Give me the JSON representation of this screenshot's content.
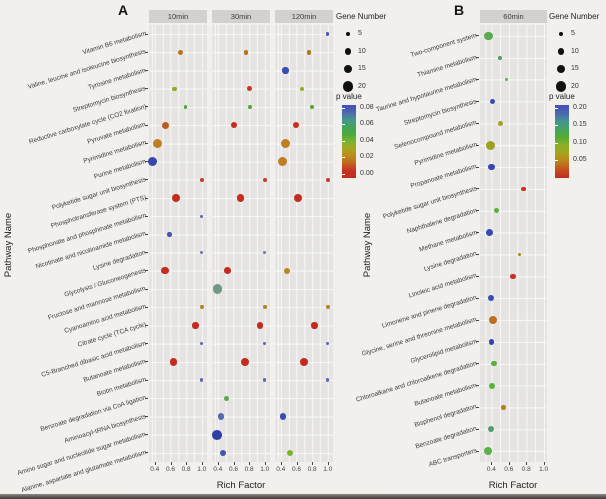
{
  "point_fields": "p=pathway index (top to bottom), f=facet index, x=rich factor, n=gene number, c=dot color",
  "chart_data": [
    {
      "type": "scatter",
      "panel_label": "A",
      "facets": [
        "10min",
        "30min",
        "120min"
      ],
      "xlabel": "Rich Factor",
      "ylabel": "Pathway Name",
      "x_ticks": [
        "0.4",
        "0.6",
        "0.8",
        "1.0"
      ],
      "xlim": [
        0.4,
        1.0
      ],
      "pathways": [
        "Vitamin B6 metabolism",
        "Valine, leucine and isoleucine biosynthesis",
        "Tyrosine metabolism",
        "Streptomycin biosynthesis",
        "Reductive carboxylate cycle (CO2 fixation)",
        "Pyruvate metabolism",
        "Pyrimidine metabolism",
        "Purine metabolism",
        "Polyketide sugar unit biosynthesis",
        "Phosphotransferase system (PTS)",
        "Phosphonate and phosphinate metabolism",
        "Nicotinate and nicotinamide metabolism",
        "Lysine degradation",
        "Glycolysis / Gluconeogenesis",
        "Fructose and mannose metabolism",
        "Cyanoamino acid metabolism",
        "Citrate cycle (TCA cycle)",
        "C5-Branched dibasic acid metabolism",
        "Butanoate metabolism",
        "Biotin metabolism",
        "Benzoate degradation via CoA ligation",
        "Aminoacyl-tRNA biosynthesis",
        "Amino sugar and nucleotide sugar metabolism",
        "Alanine, aspartate and glutamate metabolism"
      ],
      "points": [
        {
          "p": 0,
          "f": 2,
          "x": 1.0,
          "n": 2,
          "c": "#4a58b0"
        },
        {
          "p": 1,
          "f": 0,
          "x": 0.73,
          "n": 6,
          "c": "#b5741d"
        },
        {
          "p": 1,
          "f": 1,
          "x": 0.76,
          "n": 6,
          "c": "#b5741d"
        },
        {
          "p": 1,
          "f": 2,
          "x": 0.76,
          "n": 6,
          "c": "#b5741d"
        },
        {
          "p": 2,
          "f": 2,
          "x": 0.46,
          "n": 10,
          "c": "#3b4cb4"
        },
        {
          "p": 3,
          "f": 0,
          "x": 0.65,
          "n": 5,
          "c": "#8fae21"
        },
        {
          "p": 3,
          "f": 1,
          "x": 0.8,
          "n": 6,
          "c": "#c63722"
        },
        {
          "p": 3,
          "f": 2,
          "x": 0.67,
          "n": 5,
          "c": "#8fae21"
        },
        {
          "p": 4,
          "f": 0,
          "x": 0.79,
          "n": 3,
          "c": "#4fa83a"
        },
        {
          "p": 4,
          "f": 1,
          "x": 0.81,
          "n": 3,
          "c": "#4fa83a"
        },
        {
          "p": 4,
          "f": 2,
          "x": 0.8,
          "n": 3,
          "c": "#4fa83a"
        },
        {
          "p": 5,
          "f": 0,
          "x": 0.54,
          "n": 12,
          "c": "#b85c1f"
        },
        {
          "p": 5,
          "f": 1,
          "x": 0.6,
          "n": 9,
          "c": "#c52e1f"
        },
        {
          "p": 5,
          "f": 2,
          "x": 0.6,
          "n": 9,
          "c": "#c52e1f"
        },
        {
          "p": 6,
          "f": 0,
          "x": 0.44,
          "n": 17,
          "c": "#bf7e22"
        },
        {
          "p": 6,
          "f": 2,
          "x": 0.46,
          "n": 17,
          "c": "#bf7e22"
        },
        {
          "p": 7,
          "f": 0,
          "x": 0.37,
          "n": 19,
          "c": "#3647ac"
        },
        {
          "p": 7,
          "f": 2,
          "x": 0.42,
          "n": 17,
          "c": "#bf7e22"
        },
        {
          "p": 8,
          "f": 0,
          "x": 1.0,
          "n": 5,
          "c": "#c63b24"
        },
        {
          "p": 8,
          "f": 1,
          "x": 1.0,
          "n": 5,
          "c": "#c63b24"
        },
        {
          "p": 8,
          "f": 2,
          "x": 1.0,
          "n": 5,
          "c": "#c63b24"
        },
        {
          "p": 9,
          "f": 0,
          "x": 0.67,
          "n": 14,
          "c": "#c52c20"
        },
        {
          "p": 9,
          "f": 1,
          "x": 0.69,
          "n": 14,
          "c": "#c52c20"
        },
        {
          "p": 9,
          "f": 2,
          "x": 0.62,
          "n": 14,
          "c": "#c52c20"
        },
        {
          "p": 10,
          "f": 0,
          "x": 1.0,
          "n": 2,
          "c": "#5a68b5"
        },
        {
          "p": 11,
          "f": 0,
          "x": 0.59,
          "n": 5,
          "c": "#4456b2"
        },
        {
          "p": 12,
          "f": 0,
          "x": 1.0,
          "n": 2,
          "c": "#6a78bb"
        },
        {
          "p": 12,
          "f": 1,
          "x": 1.0,
          "n": 2,
          "c": "#6a78bb"
        },
        {
          "p": 13,
          "f": 0,
          "x": 0.53,
          "n": 12,
          "c": "#c52a20"
        },
        {
          "p": 13,
          "f": 1,
          "x": 0.52,
          "n": 11,
          "c": "#c52a20"
        },
        {
          "p": 13,
          "f": 2,
          "x": 0.48,
          "n": 10,
          "c": "#b5891d"
        },
        {
          "p": 14,
          "f": 1,
          "x": 0.4,
          "n": 18,
          "c": "#6f9b85"
        },
        {
          "p": 15,
          "f": 0,
          "x": 1.0,
          "n": 3,
          "c": "#b0891c"
        },
        {
          "p": 15,
          "f": 1,
          "x": 1.0,
          "n": 3,
          "c": "#b0891c"
        },
        {
          "p": 15,
          "f": 2,
          "x": 1.0,
          "n": 3,
          "c": "#b0891c"
        },
        {
          "p": 16,
          "f": 0,
          "x": 0.92,
          "n": 10,
          "c": "#c52a20"
        },
        {
          "p": 16,
          "f": 1,
          "x": 0.94,
          "n": 10,
          "c": "#c52a20"
        },
        {
          "p": 16,
          "f": 2,
          "x": 0.83,
          "n": 10,
          "c": "#c52a20"
        },
        {
          "p": 17,
          "f": 0,
          "x": 1.0,
          "n": 2,
          "c": "#5a68b5"
        },
        {
          "p": 17,
          "f": 1,
          "x": 1.0,
          "n": 2,
          "c": "#5a68b5"
        },
        {
          "p": 17,
          "f": 2,
          "x": 1.0,
          "n": 2,
          "c": "#5a68b5"
        },
        {
          "p": 18,
          "f": 0,
          "x": 0.64,
          "n": 14,
          "c": "#c52a20"
        },
        {
          "p": 18,
          "f": 1,
          "x": 0.75,
          "n": 14,
          "c": "#c52a20"
        },
        {
          "p": 18,
          "f": 2,
          "x": 0.7,
          "n": 14,
          "c": "#c52a20"
        },
        {
          "p": 19,
          "f": 0,
          "x": 1.0,
          "n": 2,
          "c": "#5a68b5"
        },
        {
          "p": 19,
          "f": 1,
          "x": 1.0,
          "n": 2,
          "c": "#5a68b5"
        },
        {
          "p": 19,
          "f": 2,
          "x": 1.0,
          "n": 2,
          "c": "#5a68b5"
        },
        {
          "p": 20,
          "f": 1,
          "x": 0.51,
          "n": 8,
          "c": "#5aa84e"
        },
        {
          "p": 21,
          "f": 1,
          "x": 0.44,
          "n": 10,
          "c": "#5a68b2"
        },
        {
          "p": 21,
          "f": 2,
          "x": 0.43,
          "n": 10,
          "c": "#3a4cb2"
        },
        {
          "p": 22,
          "f": 1,
          "x": 0.39,
          "n": 19,
          "c": "#2e3fa8"
        },
        {
          "p": 23,
          "f": 1,
          "x": 0.46,
          "n": 9,
          "c": "#4353b2"
        },
        {
          "p": 23,
          "f": 2,
          "x": 0.52,
          "n": 10,
          "c": "#7cb32a"
        }
      ],
      "legend": {
        "size_title": "Gene Number",
        "sizes": [
          "5",
          "10",
          "15",
          "20"
        ],
        "p_title": "p value",
        "p_ticks": [
          "0.08",
          "0.06",
          "0.04",
          "0.02",
          "0.00"
        ],
        "p_gradient": [
          "#4351b7",
          "#4e66b0",
          "#46958c",
          "#44a35c",
          "#4aa93c",
          "#7db32c",
          "#a8a51f",
          "#bc8b1d",
          "#c2641d",
          "#c43122",
          "#c42a20"
        ]
      }
    },
    {
      "type": "scatter",
      "panel_label": "B",
      "facets": [
        "60min"
      ],
      "xlabel": "Rich Factor",
      "ylabel": "Pathway Name",
      "x_ticks": [
        "0.4",
        "0.6",
        "0.8",
        "1.0"
      ],
      "xlim": [
        0.4,
        1.0
      ],
      "pathways": [
        "Two-component system",
        "Thiamine metabolism",
        "Taurine and hypotaurine metabolism",
        "Streptomycin biosynthesis",
        "Selenocompound metabolism",
        "Pyrimidine metabolism",
        "Propanoate metabolism",
        "Polyketide sugar unit biosynthesis",
        "Naphthalene degradation",
        "Methane metabolism",
        "Lysine degradation",
        "Linoleic acid metabolism",
        "Limonene and pinene degradation",
        "Glycine, serine and threonine metabolism",
        "Glycerolipid metabolism",
        "Chloroalkane and chloroalkene degradation",
        "Butanoate metabolism",
        "Bisphenol degradation",
        "Benzoate degradation",
        "ABC transporters"
      ],
      "points": [
        {
          "p": 0,
          "f": 0,
          "x": 0.37,
          "n": 16,
          "c": "#5aaa50"
        },
        {
          "p": 1,
          "f": 0,
          "x": 0.5,
          "n": 4,
          "c": "#4f9e62"
        },
        {
          "p": 2,
          "f": 0,
          "x": 0.57,
          "n": 2,
          "c": "#62b148"
        },
        {
          "p": 3,
          "f": 0,
          "x": 0.41,
          "n": 6,
          "c": "#3a4cb5"
        },
        {
          "p": 4,
          "f": 0,
          "x": 0.5,
          "n": 6,
          "c": "#a3a424"
        },
        {
          "p": 5,
          "f": 0,
          "x": 0.39,
          "n": 17,
          "c": "#9ea020"
        },
        {
          "p": 6,
          "f": 0,
          "x": 0.4,
          "n": 10,
          "c": "#3646ae"
        },
        {
          "p": 7,
          "f": 0,
          "x": 0.77,
          "n": 5,
          "c": "#c93323"
        },
        {
          "p": 8,
          "f": 0,
          "x": 0.46,
          "n": 7,
          "c": "#58b03c"
        },
        {
          "p": 9,
          "f": 0,
          "x": 0.38,
          "n": 12,
          "c": "#3848b0"
        },
        {
          "p": 10,
          "f": 0,
          "x": 0.72,
          "n": 2,
          "c": "#a08d1c"
        },
        {
          "p": 11,
          "f": 0,
          "x": 0.65,
          "n": 8,
          "c": "#c92f22"
        },
        {
          "p": 12,
          "f": 0,
          "x": 0.39,
          "n": 9,
          "c": "#3a4ab2"
        },
        {
          "p": 13,
          "f": 0,
          "x": 0.42,
          "n": 16,
          "c": "#bf6f1f"
        },
        {
          "p": 14,
          "f": 0,
          "x": 0.4,
          "n": 8,
          "c": "#3646b0"
        },
        {
          "p": 15,
          "f": 0,
          "x": 0.43,
          "n": 8,
          "c": "#58b13a"
        },
        {
          "p": 16,
          "f": 0,
          "x": 0.41,
          "n": 9,
          "c": "#58b13a"
        },
        {
          "p": 17,
          "f": 0,
          "x": 0.54,
          "n": 5,
          "c": "#bd7d1e"
        },
        {
          "p": 18,
          "f": 0,
          "x": 0.4,
          "n": 9,
          "c": "#4f9d72"
        },
        {
          "p": 19,
          "f": 0,
          "x": 0.36,
          "n": 16,
          "c": "#5cb04a"
        }
      ],
      "legend": {
        "size_title": "Gene Number",
        "sizes": [
          "5",
          "10",
          "15",
          "20"
        ],
        "p_title": "p value",
        "p_ticks": [
          "0.20",
          "0.15",
          "0.10",
          "0.05"
        ],
        "p_gradient": [
          "#4351b7",
          "#4b67ae",
          "#469390",
          "#45a45e",
          "#55ab34",
          "#8cb026",
          "#aaa21e",
          "#bd801c",
          "#c24f1e",
          "#c32c20"
        ]
      }
    }
  ]
}
